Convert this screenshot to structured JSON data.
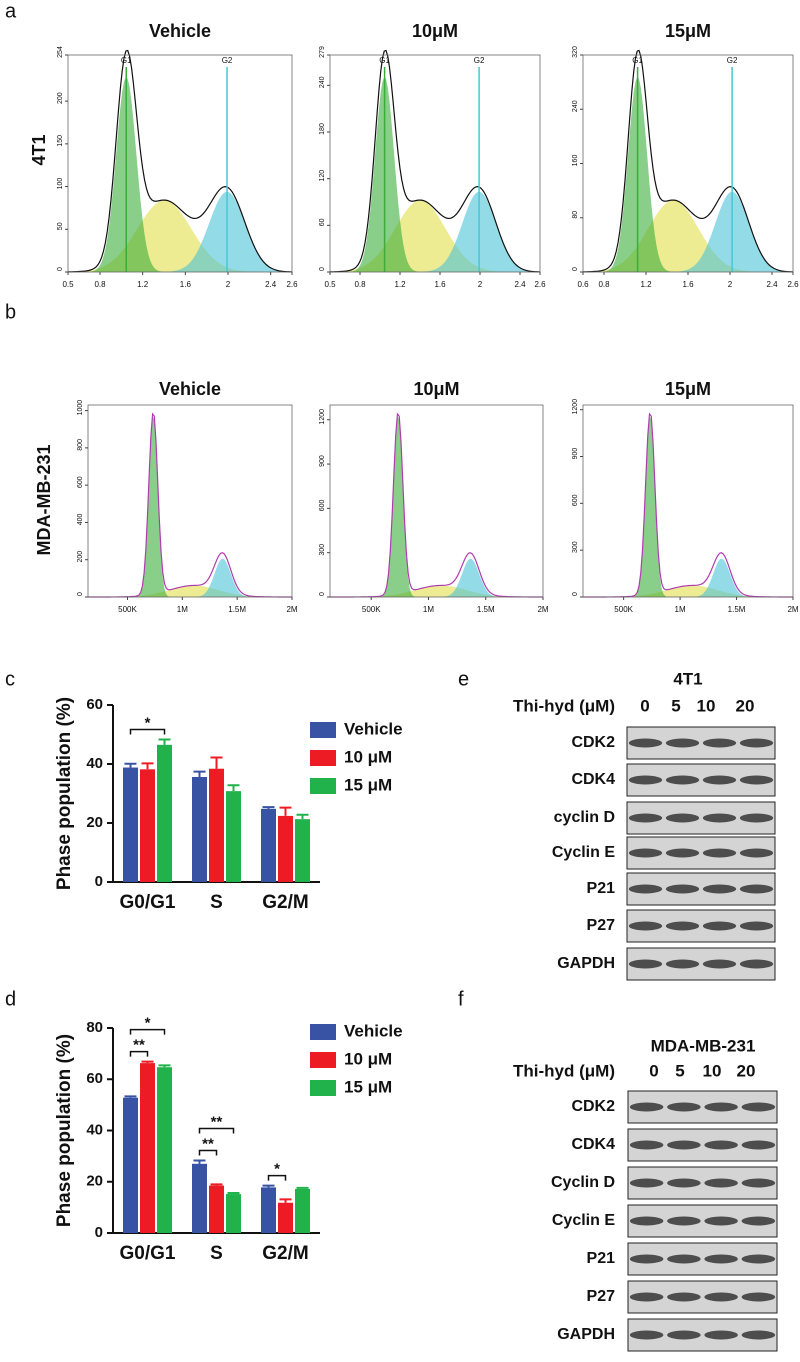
{
  "panel_labels": [
    "a",
    "b",
    "c",
    "d",
    "e",
    "f"
  ],
  "row_labels": [
    "4T1",
    "MDA-MB-231"
  ],
  "chart_data": [
    {
      "type": "flow",
      "title": "Vehicle",
      "xlim": [
        0.5,
        2.6
      ],
      "ylim": [
        0,
        254
      ],
      "xticks": [
        0.5,
        0.8,
        1.2,
        1.6,
        2,
        2.4,
        2.6
      ],
      "yticks": [
        0,
        50,
        100,
        150,
        200,
        254
      ],
      "gates": [
        "G1",
        "G2"
      ]
    },
    {
      "type": "flow",
      "title": "10μM",
      "xlim": [
        0.5,
        2.6
      ],
      "ylim": [
        0,
        279
      ],
      "xticks": [
        0.5,
        0.8,
        1.2,
        1.6,
        2,
        2.4,
        2.6
      ],
      "yticks": [
        0,
        60,
        120,
        180,
        240,
        279
      ],
      "gates": [
        "G1",
        "G2"
      ]
    },
    {
      "type": "flow",
      "title": "15μM",
      "xlim": [
        0.6,
        2.6
      ],
      "ylim": [
        0,
        320
      ],
      "xticks": [
        0.6,
        0.8,
        1.2,
        1.6,
        2,
        2.4,
        2.6
      ],
      "yticks": [
        0,
        80,
        160,
        240,
        320
      ],
      "gates": [
        "G1",
        "G2"
      ]
    },
    {
      "type": "flow",
      "title": "Vehicle",
      "xlim": [
        140000,
        2000000
      ],
      "ylim": [
        0,
        1030
      ],
      "xticks": [
        {
          "value": 500000,
          "label": "500K"
        },
        {
          "value": 1000000,
          "label": "1M"
        },
        {
          "value": 1500000,
          "label": "1.5M"
        },
        {
          "value": 2000000,
          "label": "2M"
        }
      ],
      "yticks": [
        0,
        200,
        400,
        600,
        800,
        1000
      ]
    },
    {
      "type": "flow",
      "title": "10μM",
      "xlim": [
        140000,
        2000000
      ],
      "ylim": [
        0,
        1300
      ],
      "xticks": [
        {
          "value": 500000,
          "label": "500K"
        },
        {
          "value": 1000000,
          "label": "1M"
        },
        {
          "value": 1500000,
          "label": "1.5M"
        },
        {
          "value": 2000000,
          "label": "2M"
        }
      ],
      "yticks": [
        0,
        300,
        600,
        900,
        1200
      ]
    },
    {
      "type": "flow",
      "title": "15μM",
      "xlim": [
        140000,
        2000000
      ],
      "ylim": [
        0,
        1230
      ],
      "xticks": [
        {
          "value": 500000,
          "label": "500K"
        },
        {
          "value": 1000000,
          "label": "1M"
        },
        {
          "value": 1500000,
          "label": "1.5M"
        },
        {
          "value": 2000000,
          "label": "2M"
        }
      ],
      "yticks": [
        0,
        300,
        600,
        900,
        1200
      ]
    },
    {
      "type": "bar",
      "y_label": "Phase population (%)",
      "categories": [
        "G0/G1",
        "S",
        "G2/M"
      ],
      "ylim": [
        0,
        60
      ],
      "yticks": [
        0,
        20,
        40,
        60
      ],
      "series": [
        {
          "name": "Vehicle",
          "color": "#3953a4",
          "values": [
            38.8,
            35.6,
            24.8
          ],
          "errors": [
            1.3,
            1.8,
            0.6
          ]
        },
        {
          "name": "10 μM",
          "color": "#ed1c24",
          "values": [
            38.2,
            38.4,
            22.4
          ],
          "errors": [
            2,
            3.8,
            2.8
          ]
        },
        {
          "name": "15 μM",
          "color": "#22b24c",
          "values": [
            46.5,
            30.8,
            21.3
          ],
          "errors": [
            1.8,
            2,
            1.5
          ]
        }
      ],
      "significance": [
        {
          "label": "*",
          "category": "G0/G1",
          "between": [
            "Vehicle",
            "15 μM"
          ]
        }
      ]
    },
    {
      "type": "bar",
      "y_label": "Phase population (%)",
      "categories": [
        "G0/G1",
        "S",
        "G2/M"
      ],
      "ylim": [
        0,
        80
      ],
      "yticks": [
        0,
        20,
        40,
        60,
        80
      ],
      "series": [
        {
          "name": "Vehicle",
          "color": "#3953a4",
          "values": [
            52.8,
            27,
            17.8
          ],
          "errors": [
            0.5,
            1.3,
            0.7
          ]
        },
        {
          "name": "10 μM",
          "color": "#ed1c24",
          "values": [
            66.3,
            18.5,
            11.8
          ],
          "errors": [
            0.6,
            0.5,
            1.3
          ]
        },
        {
          "name": "15 μM",
          "color": "#22b24c",
          "values": [
            64.7,
            15.2,
            17.2
          ],
          "errors": [
            0.7,
            0.4,
            0.4
          ]
        }
      ],
      "significance": [
        {
          "label": "**",
          "category": "G0/G1",
          "between": [
            "Vehicle",
            "10 μM"
          ]
        },
        {
          "label": "*",
          "category": "G0/G1",
          "between": [
            "Vehicle",
            "15 μM"
          ]
        },
        {
          "label": "**",
          "category": "S",
          "between": [
            "Vehicle",
            "10 μM"
          ]
        },
        {
          "label": "**",
          "category": "S",
          "between": [
            "Vehicle",
            "15 μM"
          ]
        },
        {
          "label": "*",
          "category": "G2/M",
          "between": [
            "Vehicle",
            "10 μM"
          ]
        }
      ]
    }
  ],
  "blots": [
    {
      "cell_line": "4T1",
      "treatment_label": "Thi-hyd (μM)",
      "doses": [
        "0",
        "5",
        "10",
        "20"
      ],
      "proteins": [
        "CDK2",
        "CDK4",
        "cyclin D",
        "Cyclin E",
        "P21",
        "P27",
        "GAPDH"
      ]
    },
    {
      "cell_line": "MDA-MB-231",
      "treatment_label": "Thi-hyd (μM)",
      "doses": [
        "0",
        "5",
        "10",
        "20"
      ],
      "proteins": [
        "CDK2",
        "CDK4",
        "Cyclin D",
        "Cyclin E",
        "P21",
        "P27",
        "GAPDH"
      ]
    }
  ]
}
